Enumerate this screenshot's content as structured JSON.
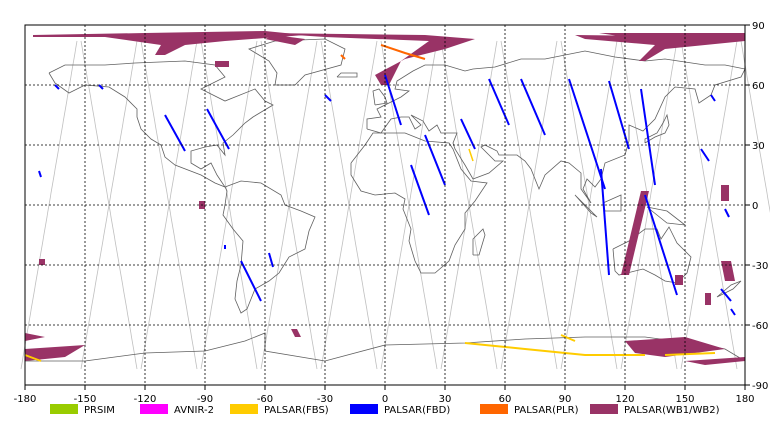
{
  "x_ticks": [
    "-180",
    "-150",
    "-120",
    "-90",
    "-60",
    "-30",
    "0",
    "30",
    "60",
    "90",
    "120",
    "150",
    "180"
  ],
  "y_ticks": [
    "90",
    "60",
    "30",
    "0",
    "-30",
    "-60",
    "-90"
  ],
  "legend": [
    {
      "label": "PRSIM",
      "color": "#99cc00"
    },
    {
      "label": "AVNIR-2",
      "color": "#ff00ff"
    },
    {
      "label": "PALSAR(FBS)",
      "color": "#ffcc00"
    },
    {
      "label": "PALSAR(FBD)",
      "color": "#0000ff"
    },
    {
      "label": "PALSAR(PLR)",
      "color": "#ff6600"
    },
    {
      "label": "PALSAR(WB1/WB2)",
      "color": "#993366"
    }
  ],
  "colors": {
    "grid": "#000000",
    "orbit": "#c0c0c0",
    "coast": "#606060",
    "frame": "#000000"
  },
  "map": {
    "lon_range": [
      -180,
      180
    ],
    "lat_range": [
      -90,
      90
    ],
    "grid_step": 30,
    "projection": "equirectangular"
  }
}
